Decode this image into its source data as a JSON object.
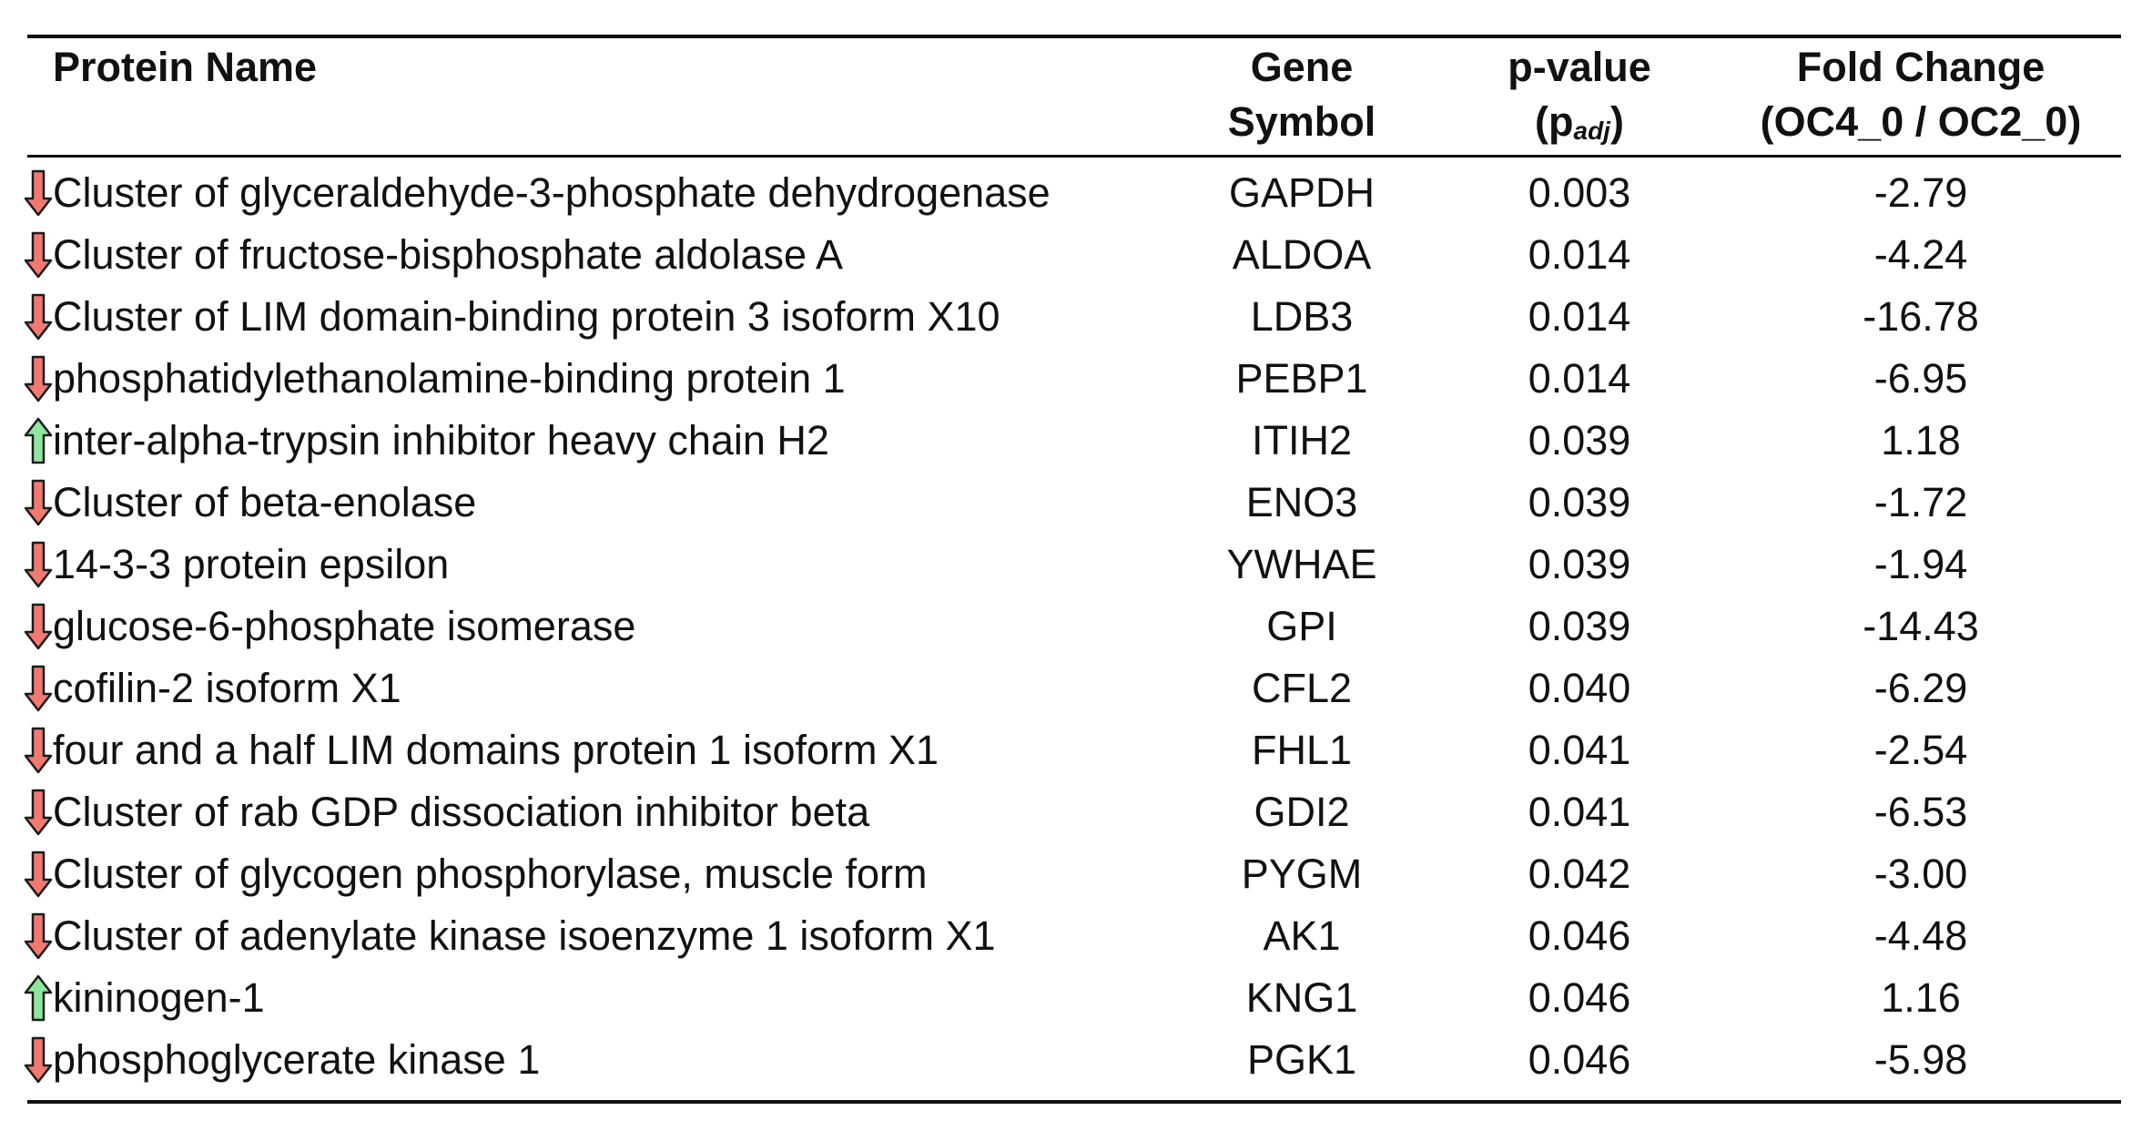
{
  "headers": {
    "protein_name": "Protein Name",
    "gene_line1": "Gene",
    "gene_line2": "Symbol",
    "pvalue_line1": "p-value",
    "pvalue_open": "(p",
    "pvalue_sub": "adj",
    "pvalue_close": ")",
    "fold_line1": "Fold Change",
    "fold_line2": "(OC4_0 / OC2_0)"
  },
  "colors": {
    "down_arrow": "#f07a72",
    "up_arrow": "#8ee6a0",
    "arrow_stroke": "#1a1a1a"
  },
  "rows": [
    {
      "dir": "down",
      "name": "Cluster of glyceraldehyde-3-phosphate dehydrogenase",
      "gene": "GAPDH",
      "p": "0.003",
      "fc": "-2.79"
    },
    {
      "dir": "down",
      "name": "Cluster of fructose-bisphosphate aldolase A",
      "gene": "ALDOA",
      "p": "0.014",
      "fc": "-4.24"
    },
    {
      "dir": "down",
      "name": "Cluster of LIM domain-binding protein 3 isoform X10",
      "gene": "LDB3",
      "p": "0.014",
      "fc": "-16.78"
    },
    {
      "dir": "down",
      "name": "phosphatidylethanolamine-binding protein 1",
      "gene": "PEBP1",
      "p": "0.014",
      "fc": "-6.95"
    },
    {
      "dir": "up",
      "name": "inter-alpha-trypsin inhibitor heavy chain H2",
      "gene": "ITIH2",
      "p": "0.039",
      "fc": "1.18"
    },
    {
      "dir": "down",
      "name": "Cluster of beta-enolase",
      "gene": "ENO3",
      "p": "0.039",
      "fc": "-1.72"
    },
    {
      "dir": "down",
      "name": "14-3-3 protein epsilon",
      "gene": "YWHAE",
      "p": "0.039",
      "fc": "-1.94"
    },
    {
      "dir": "down",
      "name": "glucose-6-phosphate isomerase",
      "gene": "GPI",
      "p": "0.039",
      "fc": "-14.43"
    },
    {
      "dir": "down",
      "name": "cofilin-2 isoform X1",
      "gene": "CFL2",
      "p": "0.040",
      "fc": "-6.29"
    },
    {
      "dir": "down",
      "name": "four and a half LIM domains protein 1 isoform X1",
      "gene": "FHL1",
      "p": "0.041",
      "fc": "-2.54"
    },
    {
      "dir": "down",
      "name": "Cluster of rab GDP dissociation inhibitor beta",
      "gene": "GDI2",
      "p": "0.041",
      "fc": "-6.53"
    },
    {
      "dir": "down",
      "name": "Cluster of glycogen phosphorylase, muscle form",
      "gene": "PYGM",
      "p": "0.042",
      "fc": "-3.00"
    },
    {
      "dir": "down",
      "name": "Cluster of adenylate kinase isoenzyme 1 isoform X1",
      "gene": "AK1",
      "p": "0.046",
      "fc": "-4.48"
    },
    {
      "dir": "up",
      "name": "kininogen-1",
      "gene": "KNG1",
      "p": "0.046",
      "fc": "1.16"
    },
    {
      "dir": "down",
      "name": "phosphoglycerate kinase 1",
      "gene": "PGK1",
      "p": "0.046",
      "fc": "-5.98"
    }
  ]
}
